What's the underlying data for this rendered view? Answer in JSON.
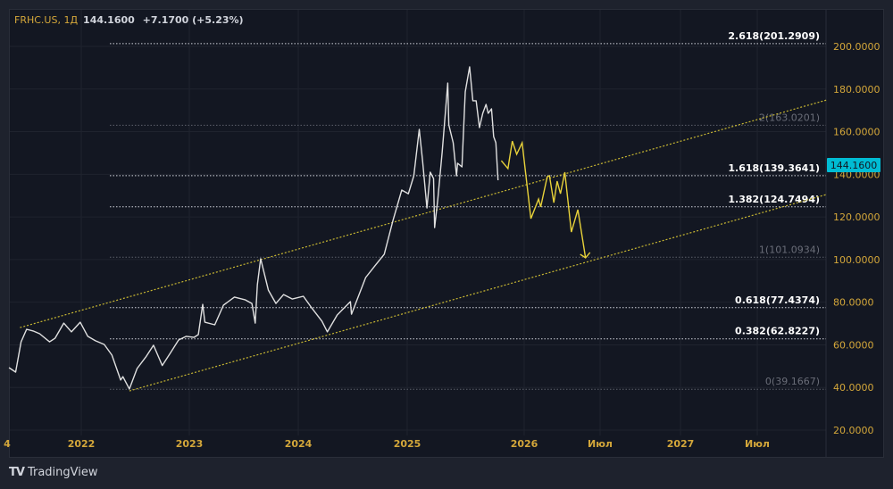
{
  "header": {
    "symbol": "FRHC.US, 1Д",
    "last": "144.1600",
    "change": "+7.1700 (+5.23%)"
  },
  "branding": {
    "logo_text": "TradingView"
  },
  "colors": {
    "background": "#131722",
    "frame": "#1e222d",
    "axis_text": "#d4a73a",
    "price_line": "#e0e0e0",
    "projection": "#e8d23a",
    "channel": "#c9b832",
    "last_price_badge": "#00bcd4"
  },
  "chart_data": {
    "type": "line",
    "xlabel": "",
    "ylabel": "",
    "ylim": [
      10,
      215
    ],
    "grid": true,
    "price_ticks": [
      "200.0000",
      "180.0000",
      "160.0000",
      "140.0000",
      "120.0000",
      "100.0000",
      "80.0000",
      "60.0000",
      "40.0000",
      "20.0000"
    ],
    "time_ticks": [
      "4",
      "2022",
      "2023",
      "2024",
      "2025",
      "2026",
      "Июл",
      "2027",
      "Июл"
    ],
    "last_price_label": "144.1600",
    "series": [
      {
        "values": [
          [
            2021.34,
            49.3
          ],
          [
            2021.4,
            47.2
          ],
          [
            2021.45,
            61.4
          ],
          [
            2021.5,
            67.3
          ],
          [
            2021.56,
            66.5
          ],
          [
            2021.62,
            65.2
          ],
          [
            2021.71,
            61.4
          ],
          [
            2021.76,
            63.1
          ],
          [
            2021.84,
            70.2
          ],
          [
            2021.91,
            66.1
          ],
          [
            2021.99,
            70.6
          ],
          [
            2022.06,
            64.0
          ],
          [
            2022.13,
            61.9
          ],
          [
            2022.21,
            60.2
          ],
          [
            2022.28,
            55.2
          ],
          [
            2022.36,
            43.5
          ],
          [
            2022.38,
            45.1
          ],
          [
            2022.44,
            39.3
          ],
          [
            2022.51,
            48.9
          ],
          [
            2022.59,
            54.3
          ],
          [
            2022.66,
            59.8
          ],
          [
            2022.74,
            50.3
          ],
          [
            2022.82,
            56.6
          ],
          [
            2022.89,
            62.3
          ],
          [
            2022.96,
            64.0
          ],
          [
            2023.03,
            63.5
          ],
          [
            2023.07,
            64.8
          ],
          [
            2023.11,
            79.0
          ],
          [
            2023.13,
            70.6
          ],
          [
            2023.22,
            69.4
          ],
          [
            2023.3,
            78.6
          ],
          [
            2023.4,
            82.4
          ],
          [
            2023.5,
            81.1
          ],
          [
            2023.56,
            79.4
          ],
          [
            2023.59,
            70.2
          ],
          [
            2023.61,
            88.2
          ],
          [
            2023.64,
            100.4
          ],
          [
            2023.71,
            85.7
          ],
          [
            2023.78,
            79.4
          ],
          [
            2023.85,
            83.6
          ],
          [
            2023.93,
            81.5
          ],
          [
            2024.03,
            82.8
          ],
          [
            2024.1,
            77.8
          ],
          [
            2024.2,
            71.1
          ],
          [
            2024.25,
            66.1
          ],
          [
            2024.34,
            74.0
          ],
          [
            2024.46,
            80.3
          ],
          [
            2024.47,
            74.4
          ],
          [
            2024.54,
            83.6
          ],
          [
            2024.6,
            91.6
          ],
          [
            2024.69,
            97.4
          ],
          [
            2024.77,
            102.5
          ],
          [
            2024.85,
            118.4
          ],
          [
            2024.93,
            132.6
          ],
          [
            2024.99,
            130.9
          ],
          [
            2025.04,
            139.3
          ],
          [
            2025.09,
            161.1
          ],
          [
            2025.12,
            146.4
          ],
          [
            2025.16,
            124.2
          ],
          [
            2025.19,
            141.0
          ],
          [
            2025.22,
            138.0
          ],
          [
            2025.23,
            115.0
          ],
          [
            2025.26,
            128.4
          ],
          [
            2025.3,
            150.6
          ],
          [
            2025.35,
            182.8
          ],
          [
            2025.36,
            163.2
          ],
          [
            2025.4,
            154.8
          ],
          [
            2025.43,
            139.3
          ],
          [
            2025.44,
            145.2
          ],
          [
            2025.48,
            143.5
          ],
          [
            2025.51,
            178.7
          ],
          [
            2025.55,
            190.4
          ],
          [
            2025.58,
            174.5
          ],
          [
            2025.61,
            174.5
          ],
          [
            2025.64,
            161.9
          ],
          [
            2025.67,
            168.6
          ],
          [
            2025.7,
            172.8
          ],
          [
            2025.72,
            168.6
          ],
          [
            2025.75,
            170.7
          ],
          [
            2025.77,
            157.7
          ],
          [
            2025.79,
            154.8
          ],
          [
            2025.81,
            137.2
          ]
        ]
      }
    ],
    "projection": [
      [
        2025.84,
        146.4
      ],
      [
        2025.9,
        142.7
      ],
      [
        2025.94,
        155.6
      ],
      [
        2025.98,
        149.4
      ],
      [
        2026.03,
        154.8
      ],
      [
        2026.11,
        119.2
      ],
      [
        2026.18,
        128.4
      ],
      [
        2026.2,
        124.7
      ],
      [
        2026.26,
        138.9
      ],
      [
        2026.28,
        139.3
      ],
      [
        2026.32,
        126.7
      ],
      [
        2026.35,
        136.8
      ],
      [
        2026.38,
        130.9
      ],
      [
        2026.42,
        141.0
      ],
      [
        2026.48,
        112.9
      ],
      [
        2026.54,
        123.4
      ],
      [
        2026.61,
        100.8
      ]
    ],
    "channel": {
      "upper": [
        [
          2021.44,
          68.1
        ],
        [
          2028.81,
          174.8
        ]
      ],
      "lower": [
        [
          2022.44,
          38.4
        ],
        [
          2028.81,
          130.5
        ]
      ]
    },
    "fib_levels": [
      {
        "label": "2.618(201.2909)",
        "value": 201.2909,
        "emphasis": true
      },
      {
        "label": "2(163.0201)",
        "value": 163.0201,
        "emphasis": false
      },
      {
        "label": "1.618(139.3641)",
        "value": 139.3641,
        "emphasis": true
      },
      {
        "label": "1.382(124.7494)",
        "value": 124.7494,
        "emphasis": true
      },
      {
        "label": "1(101.0934)",
        "value": 101.0934,
        "emphasis": false
      },
      {
        "label": "0.618(77.4374)",
        "value": 77.4374,
        "emphasis": true
      },
      {
        "label": "0.382(62.8227)",
        "value": 62.8227,
        "emphasis": true
      },
      {
        "label": "0(39.1667)",
        "value": 39.1667,
        "emphasis": false
      }
    ]
  }
}
